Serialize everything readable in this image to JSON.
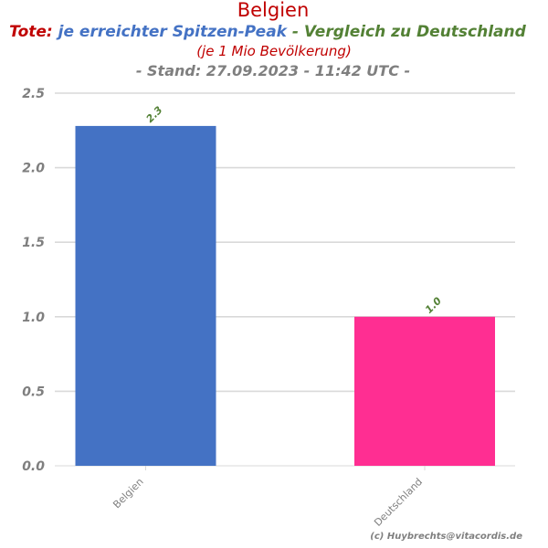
{
  "header": {
    "country": "Belgien",
    "tote": "Tote:",
    "metric": " je erreichter Spitzen-Peak",
    "comparison": " - Vergleich zu Deutschland",
    "per_population": "(je 1 Mio Bevölkerung)",
    "stand": "- Stand: 27.09.2023 - 11:42 UTC -"
  },
  "credit": "(c) Huybrechts@vitacordis.de",
  "colors": {
    "title_red": "#c00000",
    "metric_blue": "#4472c4",
    "comparison_green": "#538135",
    "gray": "#7f7f7f",
    "gridline": "#d9d9d9"
  },
  "chart_data": {
    "type": "bar",
    "categories": [
      "Belgien",
      "Deutschland"
    ],
    "values": [
      2.28,
      1.0
    ],
    "data_labels": [
      "2.3",
      "1.0"
    ],
    "bar_colors": [
      "#4472c4",
      "#ff2e92"
    ],
    "yticks": [
      "0.0",
      "0.5",
      "1.0",
      "1.5",
      "2.0",
      "2.5"
    ],
    "ylim": [
      0,
      2.5
    ],
    "grid": true,
    "legend": "none"
  }
}
